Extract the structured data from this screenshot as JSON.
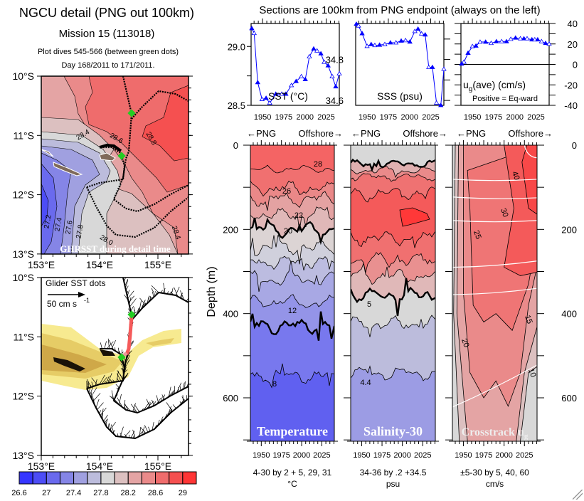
{
  "left_header": {
    "title": "NGCU detail (PNG out 100km)",
    "mission": "Mission 15 (113018)",
    "dives": "Plot dives 545-566 (between green dots)",
    "days": "Day 168/2011 to 171/2011."
  },
  "right_header": "Sections are 100km from PNG endpoint (always on the left)",
  "map_sst": {
    "lat_labels": [
      "10°S",
      "11°S",
      "12°S",
      "13°S"
    ],
    "lon_labels": [
      "153°E",
      "154°E",
      "155°E"
    ],
    "caption": "GHRSST during detail time",
    "contour_labels": [
      "28.4",
      "28.6",
      "28.8",
      "27.2",
      "27.4",
      "27.6",
      "27.8",
      "28.0",
      "28.4"
    ]
  },
  "map_glider": {
    "lat_labels": [
      "10°S",
      "11°S",
      "12°S",
      "13°S"
    ],
    "lon_labels": [
      "153°E",
      "154°E",
      "155°E"
    ],
    "legend_title": "Glider SST dots",
    "scale_value": "50 cm s",
    "scale_exponent": "-1"
  },
  "colorbar": {
    "labels": [
      "26.6",
      "27",
      "27.4",
      "27.8",
      "28.2",
      "28.6",
      "29"
    ],
    "colors": [
      "#3535ff",
      "#4d4df6",
      "#6a6aee",
      "#8585e6",
      "#a0a0e0",
      "#bcbcdc",
      "#d8d8d8",
      "#dcc0c0",
      "#e4a4a4",
      "#ea8a8a",
      "#ef6c6c",
      "#f55050",
      "#ff3535"
    ]
  },
  "direction": {
    "left": "←PNG",
    "right": "Offshore→"
  },
  "depth_axis": {
    "label": "Depth (m)",
    "ticks": [
      "0",
      "200",
      "400",
      "600"
    ]
  },
  "series_color": "#0000ff",
  "chart_data": [
    {
      "type": "line",
      "label": "SST (°C)",
      "xticks": [
        1950,
        1975,
        2000,
        2025
      ],
      "xlim": [
        1936.5,
        2040.5
      ],
      "ylim": [
        28.5,
        29.195
      ],
      "ytick_labels": [
        "29.0",
        "28.5"
      ],
      "x": [
        1937.3,
        1940.1,
        1944.3,
        1949.4,
        1954.2,
        1958.5,
        1965.6,
        1972.6,
        1977.5,
        1984.0,
        1989.6,
        1995.8,
        2000.4,
        2005.2,
        2010.3,
        2014.2,
        2018.8,
        2022.7,
        2027.3,
        2032.1,
        2036.3,
        2041.4
      ],
      "y": [
        29.153,
        29.112,
        28.694,
        28.551,
        28.561,
        28.52,
        28.596,
        28.596,
        28.596,
        28.669,
        28.704,
        28.745,
        28.72,
        28.914,
        28.98,
        28.963,
        28.939,
        28.867,
        28.837,
        28.745,
        28.659,
        28.769
      ]
    },
    {
      "type": "line",
      "label": "SSS (psu)",
      "xticks": [
        1950,
        1975,
        2000,
        2025
      ],
      "xlim": [
        1936.5,
        2040.5
      ],
      "ylim": [
        34.576,
        34.976
      ],
      "ytick_labels": [
        "34.8",
        "34.6"
      ],
      "x": [
        1937.3,
        1939.8,
        1944.1,
        1950.0,
        1954.8,
        1959.1,
        1964.7,
        1970.9,
        1977.5,
        1984.0,
        1990.2,
        1995.3,
        2000.4,
        2006.3,
        2010.0,
        2014.2,
        2018.5,
        2022.7,
        2027.0,
        2031.8,
        2036.9,
        2041.7
      ],
      "y": [
        34.973,
        34.965,
        34.927,
        34.865,
        34.874,
        34.869,
        34.871,
        34.874,
        34.882,
        34.882,
        34.891,
        34.893,
        34.886,
        34.938,
        34.949,
        34.926,
        34.921,
        34.762,
        34.762,
        34.588,
        34.576,
        34.753
      ]
    },
    {
      "type": "line",
      "label_main": "u",
      "label_sub": "g",
      "label_rest": "(ave) (cm/s)",
      "note": "Positive = Eq-ward",
      "xticks": [
        1950,
        1975,
        2000,
        2025
      ],
      "xlim": [
        1936.5,
        2040.5
      ],
      "ylim": [
        -40,
        40
      ],
      "ytick_labels": [
        "40",
        "20",
        "0",
        "-20",
        "-40"
      ],
      "x": [
        1937.3,
        1940.1,
        1944.9,
        1950.0,
        1954.2,
        1959.1,
        1965.6,
        1972.1,
        1978.3,
        1984.5,
        1990.2,
        1995.3,
        2000.9,
        2006.6,
        2010.8,
        2014.5,
        2020.2,
        2023.6,
        2027.0,
        2031.5,
        2036.3,
        2041.1
      ],
      "y": [
        0.5,
        2.4,
        11.1,
        17.6,
        18.1,
        21.9,
        21.9,
        20.7,
        22.4,
        22.4,
        22.4,
        24.7,
        25.9,
        25.2,
        25.2,
        25.2,
        24.2,
        24.2,
        24.2,
        22.4,
        20.7,
        20.0
      ]
    },
    {
      "type": "heatmap",
      "title": "Temperature",
      "contour_spec": "4-30 by 2 + 5, 29, 31",
      "units": "°C",
      "xticks": [
        1950,
        1975,
        2000,
        2025
      ],
      "ylim": [
        0,
        703
      ],
      "contours": [
        {
          "level": 28,
          "depth": 57
        },
        {
          "level": 26,
          "depth": 103
        },
        {
          "level": 24,
          "depth": 128
        },
        {
          "level": 22,
          "depth": 165
        },
        {
          "level": 20,
          "depth": 201
        },
        {
          "level": 18,
          "depth": 244
        },
        {
          "level": 16,
          "depth": 277
        },
        {
          "level": 14,
          "depth": 317
        },
        {
          "level": 12,
          "depth": 373
        },
        {
          "level": 10,
          "depth": 429
        },
        {
          "level": 8,
          "depth": 548
        }
      ],
      "band_colors": [
        "#f46464",
        "#f07070",
        "#ea8888",
        "#e4a2a2",
        "#e0b8b8",
        "#dcd4d4",
        "#d0d0dc",
        "#bcbce0",
        "#a8a8e4",
        "#9494e8",
        "#7878ee",
        "#6060f0"
      ],
      "contour_labels": [
        "28",
        "26",
        "22",
        "20",
        "12",
        "8"
      ]
    },
    {
      "type": "heatmap",
      "title": "Salinity-30",
      "contour_spec": "34-36 by .2 +34.5",
      "units": "psu",
      "xticks": [
        1950,
        1975,
        2000,
        2025
      ],
      "ylim": [
        0,
        703
      ],
      "contours": [
        {
          "level": 34.5,
          "depth": 45
        },
        {
          "level": 34.6,
          "depth": 60
        },
        {
          "level": 34.8,
          "depth": 75
        },
        {
          "level": 35.0,
          "depth": 115
        },
        {
          "level": 35.0,
          "depth": 221
        },
        {
          "level": 34.8,
          "depth": 272
        },
        {
          "level": 34.6,
          "depth": 311
        },
        {
          "level": 34.5,
          "depth": 357
        },
        {
          "level": 34.4,
          "depth": 424
        },
        {
          "level": 34.2,
          "depth": 542
        }
      ],
      "band_colors": [
        "#d8d8d8",
        "#e0b0b0",
        "#ea8a8a",
        "#ef7272",
        "#f45a5a",
        "#f07070",
        "#e99090",
        "#e0b8b8",
        "#d8d8d8",
        "#bcbcdc",
        "#9c9ce4"
      ],
      "contour_labels": [
        "5",
        "4.4"
      ]
    },
    {
      "type": "heatmap",
      "title_main": "Crosstrack u",
      "title_sub": "g",
      "contour_spec": "±5-30 by 5, 40, 60",
      "units": "cm/s",
      "xticks": [
        1950,
        1975,
        2000,
        2025
      ],
      "ylim": [
        0,
        703
      ],
      "levels": [
        5,
        10,
        15,
        20,
        30,
        40
      ],
      "band_colors": [
        "#d8d8d8",
        "#dcc0c0",
        "#e4a4a4",
        "#ea8a8a",
        "#ef7575",
        "#f45a5a",
        "#f84848"
      ],
      "contour_labels": [
        "40",
        "30",
        "25",
        "20",
        "15",
        "10"
      ]
    }
  ]
}
